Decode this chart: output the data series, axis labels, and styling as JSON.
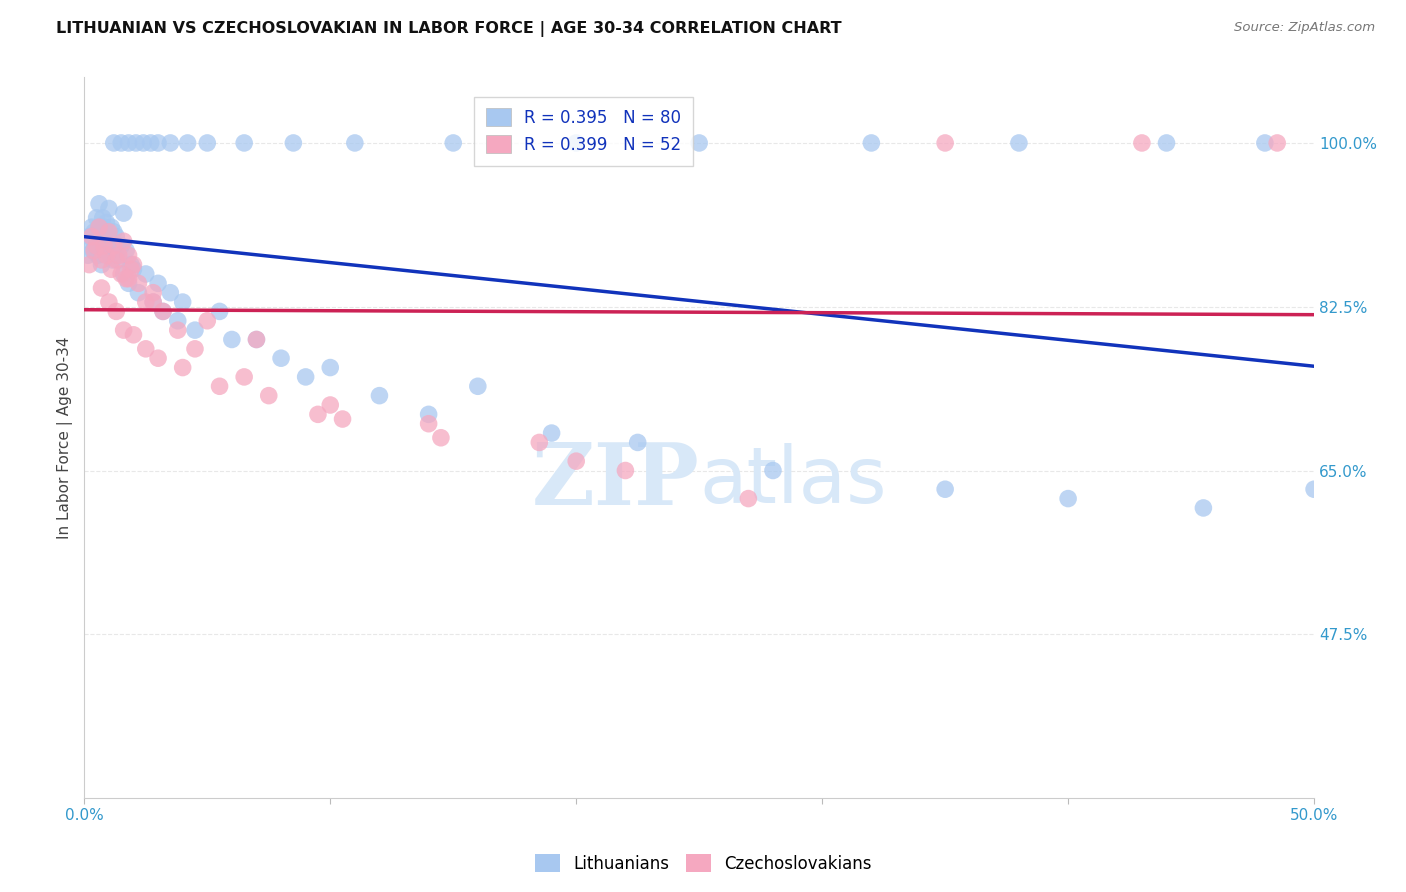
{
  "title": "LITHUANIAN VS CZECHOSLOVAKIAN IN LABOR FORCE | AGE 30-34 CORRELATION CHART",
  "source": "Source: ZipAtlas.com",
  "ylabel": "In Labor Force | Age 30-34",
  "xlim": [
    0.0,
    50.0
  ],
  "ylim": [
    30.0,
    107.0
  ],
  "xticks": [
    0.0,
    10.0,
    20.0,
    30.0,
    40.0,
    50.0
  ],
  "xticklabels": [
    "0.0%",
    "",
    "",
    "",
    "",
    "50.0%"
  ],
  "yticks": [
    47.5,
    65.0,
    82.5,
    100.0
  ],
  "yticklabels": [
    "47.5%",
    "65.0%",
    "82.5%",
    "100.0%"
  ],
  "legend_blue_r": "0.395",
  "legend_blue_n": "80",
  "legend_pink_r": "0.399",
  "legend_pink_n": "52",
  "blue_fill": "#a8c8f0",
  "pink_fill": "#f5a8c0",
  "blue_line": "#1133bb",
  "pink_line": "#cc2255",
  "axis_color": "#3399cc",
  "title_color": "#111111",
  "source_color": "#777777",
  "watermark_zip": "ZIP",
  "watermark_atlas": "atlas",
  "watermark_color": "#d8e8f8",
  "grid_color": "#e8e8e8",
  "blue_x": [
    0.15,
    0.2,
    0.25,
    0.3,
    0.35,
    0.4,
    0.45,
    0.5,
    0.55,
    0.6,
    0.65,
    0.7,
    0.75,
    0.8,
    0.85,
    0.9,
    0.95,
    1.0,
    1.05,
    1.1,
    1.15,
    1.2,
    1.3,
    1.4,
    1.5,
    1.6,
    1.7,
    1.8,
    1.9,
    2.0,
    2.2,
    2.5,
    2.8,
    3.2,
    3.8,
    4.5,
    5.5,
    7.0,
    9.0,
    12.0,
    16.0,
    3.0,
    3.5,
    4.0,
    6.0,
    8.0,
    10.0,
    14.0,
    19.0,
    22.5,
    28.0,
    35.0,
    40.0,
    45.5,
    50.0,
    1.2,
    1.5,
    1.8,
    2.1,
    2.4,
    2.7,
    3.0,
    3.5,
    4.2,
    5.0,
    6.5,
    8.5,
    11.0,
    15.0,
    20.0,
    25.0,
    32.0,
    38.0,
    44.0,
    48.0,
    0.6,
    0.8,
    1.0,
    1.3,
    1.6
  ],
  "blue_y": [
    88.0,
    90.0,
    89.5,
    91.0,
    88.5,
    90.5,
    89.0,
    92.0,
    88.0,
    91.0,
    89.5,
    87.0,
    92.0,
    90.0,
    88.5,
    91.5,
    89.0,
    90.0,
    88.0,
    91.0,
    87.5,
    90.5,
    88.0,
    87.5,
    89.0,
    86.0,
    88.5,
    85.0,
    87.0,
    86.5,
    84.0,
    86.0,
    83.0,
    82.0,
    81.0,
    80.0,
    82.0,
    79.0,
    75.0,
    73.0,
    74.0,
    85.0,
    84.0,
    83.0,
    79.0,
    77.0,
    76.0,
    71.0,
    69.0,
    68.0,
    65.0,
    63.0,
    62.0,
    61.0,
    63.0,
    100.0,
    100.0,
    100.0,
    100.0,
    100.0,
    100.0,
    100.0,
    100.0,
    100.0,
    100.0,
    100.0,
    100.0,
    100.0,
    100.0,
    100.0,
    100.0,
    100.0,
    100.0,
    100.0,
    100.0,
    93.5,
    91.0,
    93.0,
    90.0,
    92.5
  ],
  "pink_x": [
    0.2,
    0.3,
    0.4,
    0.5,
    0.6,
    0.7,
    0.8,
    0.9,
    1.0,
    1.1,
    1.2,
    1.3,
    1.4,
    1.5,
    1.6,
    1.7,
    1.8,
    1.9,
    2.0,
    2.2,
    2.5,
    2.8,
    3.2,
    3.8,
    5.0,
    7.0,
    10.0,
    14.0,
    18.5,
    22.0,
    0.7,
    1.0,
    1.3,
    1.6,
    2.0,
    2.5,
    3.0,
    4.0,
    5.5,
    7.5,
    10.5,
    14.5,
    20.0,
    27.0,
    35.0,
    43.0,
    48.5,
    1.8,
    2.8,
    4.5,
    6.5,
    9.5
  ],
  "pink_y": [
    87.0,
    90.0,
    88.5,
    89.0,
    91.0,
    87.5,
    89.0,
    88.0,
    90.5,
    86.5,
    89.0,
    87.5,
    88.0,
    86.0,
    89.5,
    85.5,
    88.0,
    86.5,
    87.0,
    85.0,
    83.0,
    84.0,
    82.0,
    80.0,
    81.0,
    79.0,
    72.0,
    70.0,
    68.0,
    65.0,
    84.5,
    83.0,
    82.0,
    80.0,
    79.5,
    78.0,
    77.0,
    76.0,
    74.0,
    73.0,
    70.5,
    68.5,
    66.0,
    62.0,
    100.0,
    100.0,
    100.0,
    85.5,
    83.0,
    78.0,
    75.0,
    71.0
  ]
}
